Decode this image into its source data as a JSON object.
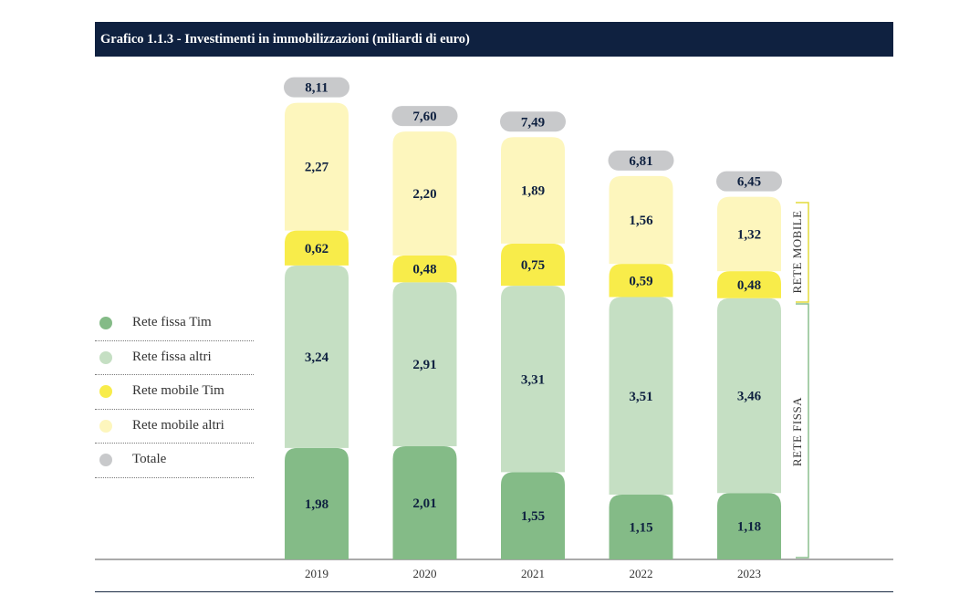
{
  "header": {
    "title": "Grafico 1.1.3 - Investimenti in immobilizzazioni (miliardi di euro)"
  },
  "colors": {
    "header_bg": "#0f2140",
    "rete_fissa_tim": "#84bb87",
    "rete_fissa_altri": "#c5dfc3",
    "rete_mobile_tim": "#f8ec4a",
    "rete_mobile_altri": "#fdf6bd",
    "totale": "#c8c9cb",
    "label_text": "#0f2140"
  },
  "legend": [
    {
      "label": "Rete fissa Tim",
      "color": "#84bb87"
    },
    {
      "label": "Rete fissa altri",
      "color": "#c5dfc3"
    },
    {
      "label": "Rete mobile Tim",
      "color": "#f8ec4a"
    },
    {
      "label": "Rete mobile altri",
      "color": "#fdf6bd"
    },
    {
      "label": "Totale",
      "color": "#c8c9cb"
    }
  ],
  "brackets": {
    "mobile": "RETE MOBILE",
    "fissa": "RETE FISSA"
  },
  "chart_data": {
    "type": "bar",
    "stacked": true,
    "title": "Grafico 1.1.3 - Investimenti in immobilizzazioni (miliardi di euro)",
    "categories": [
      "2019",
      "2020",
      "2021",
      "2022",
      "2023"
    ],
    "series": [
      {
        "name": "Rete fissa Tim",
        "values": [
          1.98,
          2.01,
          1.55,
          1.15,
          1.18
        ],
        "labels": [
          "1,98",
          "2,01",
          "1,55",
          "1,15",
          "1,18"
        ]
      },
      {
        "name": "Rete fissa altri",
        "values": [
          3.24,
          2.91,
          3.31,
          3.51,
          3.46
        ],
        "labels": [
          "3,24",
          "2,91",
          "3,31",
          "3,51",
          "3,46"
        ]
      },
      {
        "name": "Rete mobile Tim",
        "values": [
          0.62,
          0.48,
          0.75,
          0.59,
          0.48
        ],
        "labels": [
          "0,62",
          "0,48",
          "0,75",
          "0,59",
          "0,48"
        ]
      },
      {
        "name": "Rete mobile altri",
        "values": [
          2.27,
          2.2,
          1.89,
          1.56,
          1.32
        ],
        "labels": [
          "2,27",
          "2,20",
          "1,89",
          "1,56",
          "1,32"
        ]
      }
    ],
    "totals": {
      "name": "Totale",
      "values": [
        8.11,
        7.6,
        7.49,
        6.81,
        6.45
      ],
      "labels": [
        "8,11",
        "7,60",
        "7,49",
        "6,81",
        "6,45"
      ]
    }
  }
}
